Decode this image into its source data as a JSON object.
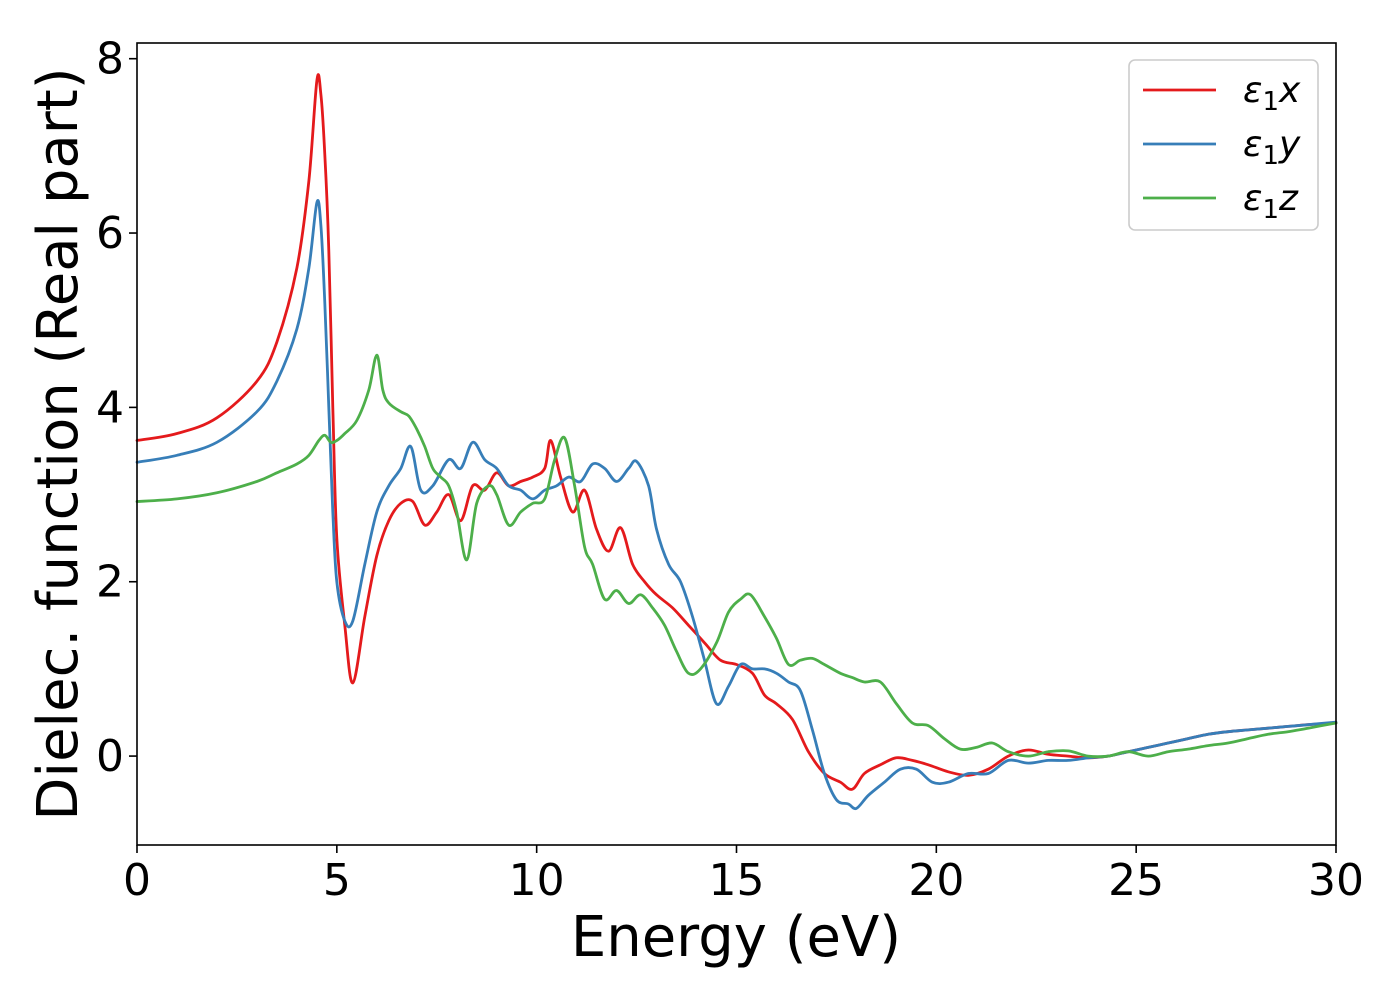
{
  "chart_data": {
    "type": "line",
    "title": "",
    "xlabel": "Energy (eV)",
    "ylabel": "Dielec. function (Real part)",
    "xlim": [
      0,
      30
    ],
    "ylim": [
      -1.02,
      8.18
    ],
    "xticks": [
      0,
      5,
      10,
      15,
      20,
      25,
      30
    ],
    "yticks": [
      0,
      2,
      4,
      6,
      8
    ],
    "grid": false,
    "legend_position": "top-right",
    "series": [
      {
        "name": "ε₁x",
        "label_main": "ε",
        "label_sub": "1",
        "label_tail": "x",
        "color": "#e41a1c",
        "x": [
          0,
          1,
          2,
          3,
          3.5,
          4,
          4.3,
          4.5,
          4.6,
          4.7,
          4.8,
          4.9,
          5.0,
          5.2,
          5.4,
          5.7,
          6.0,
          6.3,
          6.6,
          6.9,
          7.2,
          7.5,
          7.8,
          8.1,
          8.4,
          8.7,
          9.0,
          9.3,
          9.6,
          9.9,
          10.2,
          10.35,
          10.6,
          10.9,
          11.2,
          11.5,
          11.8,
          12.1,
          12.4,
          12.7,
          13.0,
          13.4,
          13.8,
          14.2,
          14.6,
          15.0,
          15.4,
          15.7,
          16.0,
          16.4,
          16.8,
          17.2,
          17.6,
          17.9,
          18.2,
          18.6,
          19.0,
          19.4,
          19.8,
          20.3,
          20.8,
          21.3,
          21.8,
          22.3,
          22.8,
          23.3,
          23.8,
          24.3,
          24.8,
          25.3,
          25.8,
          26.3,
          26.8,
          27.3,
          27.8,
          28.3,
          28.8,
          29.3,
          30
        ],
        "y": [
          3.62,
          3.7,
          3.88,
          4.3,
          4.75,
          5.6,
          6.6,
          7.75,
          7.6,
          6.9,
          5.8,
          4.0,
          2.5,
          1.5,
          0.84,
          1.6,
          2.3,
          2.7,
          2.9,
          2.92,
          2.65,
          2.8,
          3.0,
          2.7,
          3.1,
          3.05,
          3.25,
          3.1,
          3.15,
          3.2,
          3.3,
          3.62,
          3.2,
          2.8,
          3.05,
          2.6,
          2.35,
          2.62,
          2.2,
          2.0,
          1.85,
          1.7,
          1.5,
          1.3,
          1.1,
          1.05,
          0.95,
          0.7,
          0.6,
          0.42,
          0.05,
          -0.2,
          -0.3,
          -0.38,
          -0.2,
          -0.1,
          -0.02,
          -0.05,
          -0.1,
          -0.18,
          -0.22,
          -0.15,
          0.0,
          0.07,
          0.02,
          0.0,
          -0.02,
          0.0,
          0.05,
          0.1,
          0.15,
          0.2,
          0.25,
          0.28,
          0.3,
          0.32,
          0.34,
          0.36,
          0.38
        ]
      },
      {
        "name": "ε₁y",
        "label_main": "ε",
        "label_sub": "1",
        "label_tail": "y",
        "color": "#377eb8",
        "x": [
          0,
          1,
          2,
          3,
          3.5,
          4,
          4.3,
          4.5,
          4.6,
          4.7,
          4.8,
          4.9,
          5.0,
          5.2,
          5.4,
          5.7,
          6.0,
          6.3,
          6.6,
          6.85,
          7.1,
          7.4,
          7.8,
          8.1,
          8.4,
          8.7,
          9.0,
          9.3,
          9.6,
          9.9,
          10.2,
          10.5,
          10.8,
          11.1,
          11.4,
          11.7,
          12.0,
          12.3,
          12.5,
          12.8,
          13.0,
          13.3,
          13.6,
          13.9,
          14.2,
          14.5,
          14.8,
          15.1,
          15.4,
          15.7,
          16.0,
          16.3,
          16.6,
          16.9,
          17.2,
          17.5,
          17.8,
          18.0,
          18.3,
          18.7,
          19.1,
          19.5,
          19.9,
          20.3,
          20.8,
          21.3,
          21.8,
          22.3,
          22.8,
          23.3,
          23.8,
          24.3,
          24.8,
          25.3,
          25.8,
          26.3,
          26.8,
          27.3,
          27.8,
          28.3,
          28.8,
          29.3,
          30
        ],
        "y": [
          3.37,
          3.45,
          3.6,
          3.95,
          4.3,
          4.9,
          5.6,
          6.35,
          6.1,
          5.2,
          4.0,
          2.8,
          2.0,
          1.55,
          1.55,
          2.2,
          2.8,
          3.1,
          3.3,
          3.55,
          3.05,
          3.1,
          3.4,
          3.3,
          3.6,
          3.4,
          3.3,
          3.1,
          3.05,
          2.95,
          3.05,
          3.1,
          3.2,
          3.15,
          3.35,
          3.3,
          3.15,
          3.3,
          3.38,
          3.1,
          2.6,
          2.2,
          2.0,
          1.6,
          1.1,
          0.6,
          0.8,
          1.05,
          1.0,
          1.0,
          0.95,
          0.85,
          0.75,
          0.3,
          -0.2,
          -0.5,
          -0.55,
          -0.6,
          -0.45,
          -0.3,
          -0.15,
          -0.15,
          -0.3,
          -0.3,
          -0.2,
          -0.2,
          -0.05,
          -0.08,
          -0.05,
          -0.05,
          -0.02,
          0.0,
          0.05,
          0.1,
          0.15,
          0.2,
          0.25,
          0.28,
          0.3,
          0.32,
          0.34,
          0.36,
          0.39
        ]
      },
      {
        "name": "ε₁z",
        "label_main": "ε",
        "label_sub": "1",
        "label_tail": "z",
        "color": "#4daf4a",
        "x": [
          0,
          1,
          2,
          3,
          3.5,
          4,
          4.3,
          4.55,
          4.7,
          4.85,
          5.0,
          5.2,
          5.5,
          5.8,
          6.0,
          6.15,
          6.3,
          6.6,
          6.8,
          7.0,
          7.2,
          7.4,
          7.6,
          7.8,
          8.0,
          8.25,
          8.5,
          8.8,
          9.0,
          9.3,
          9.6,
          9.9,
          10.2,
          10.45,
          10.7,
          10.95,
          11.2,
          11.4,
          11.7,
          12.0,
          12.3,
          12.6,
          12.9,
          13.2,
          13.5,
          13.8,
          14.1,
          14.5,
          14.8,
          15.1,
          15.35,
          15.7,
          16.0,
          16.3,
          16.6,
          16.9,
          17.2,
          17.6,
          17.9,
          18.2,
          18.6,
          19.0,
          19.4,
          19.8,
          20.2,
          20.6,
          21.0,
          21.4,
          21.8,
          22.3,
          22.8,
          23.3,
          23.8,
          24.3,
          24.8,
          25.3,
          25.8,
          26.3,
          26.8,
          27.3,
          27.8,
          28.3,
          28.8,
          29.3,
          30
        ],
        "y": [
          2.92,
          2.95,
          3.02,
          3.15,
          3.25,
          3.35,
          3.45,
          3.62,
          3.68,
          3.6,
          3.62,
          3.7,
          3.85,
          4.2,
          4.6,
          4.2,
          4.05,
          3.95,
          3.9,
          3.75,
          3.55,
          3.3,
          3.2,
          3.1,
          2.8,
          2.25,
          2.9,
          3.1,
          3.0,
          2.65,
          2.8,
          2.9,
          2.95,
          3.4,
          3.65,
          3.1,
          2.4,
          2.2,
          1.8,
          1.9,
          1.75,
          1.85,
          1.7,
          1.5,
          1.2,
          0.95,
          1.0,
          1.3,
          1.65,
          1.8,
          1.85,
          1.6,
          1.35,
          1.05,
          1.1,
          1.12,
          1.05,
          0.95,
          0.9,
          0.85,
          0.85,
          0.6,
          0.38,
          0.35,
          0.2,
          0.08,
          0.1,
          0.15,
          0.05,
          0.0,
          0.05,
          0.06,
          0.0,
          0.0,
          0.05,
          0.0,
          0.05,
          0.08,
          0.12,
          0.15,
          0.2,
          0.25,
          0.28,
          0.32,
          0.38
        ]
      }
    ]
  }
}
